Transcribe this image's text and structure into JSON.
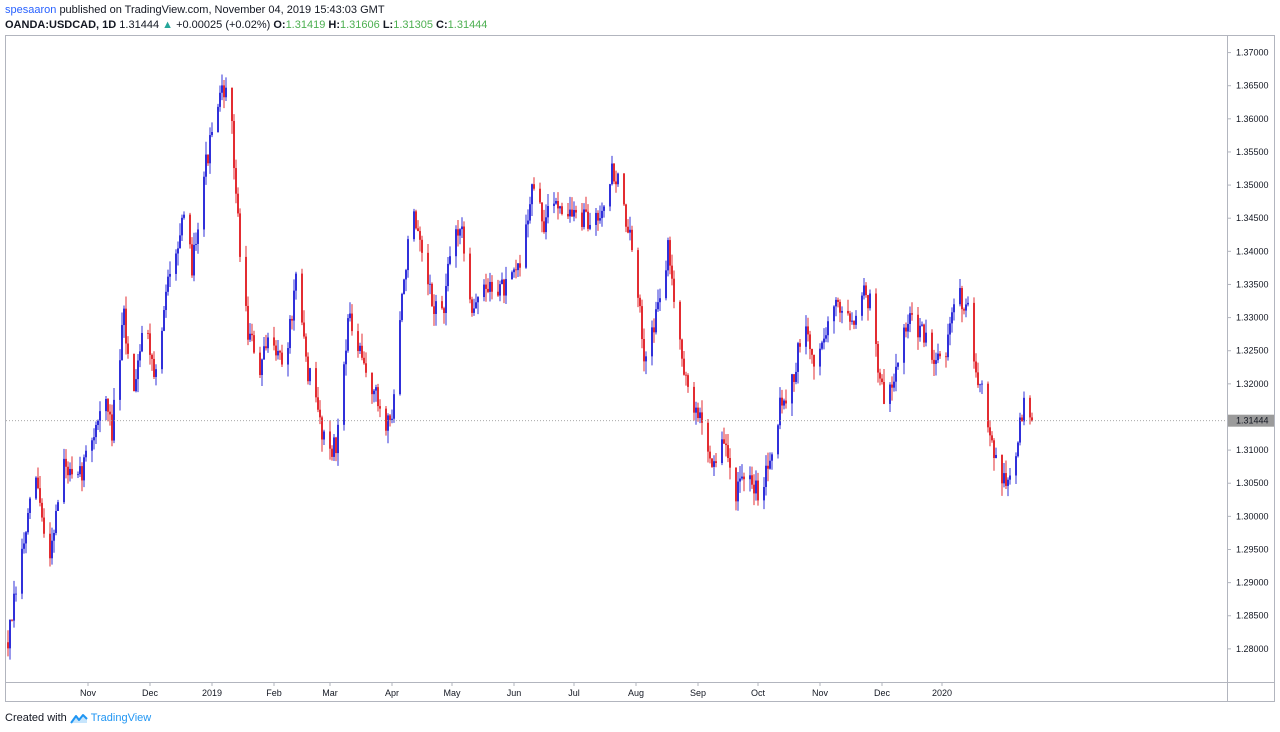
{
  "header": {
    "author": "spesaaron",
    "published_text": "published on TradingView.com, November 04, 2019 15:43:03 GMT",
    "symbol": "OANDA:USDCAD, 1D",
    "last": "1.31444",
    "change_arrow": "▲",
    "change": "+0.00025 (+0.02%)",
    "o_label": "O:",
    "o_value": "1.31419",
    "h_label": "H:",
    "h_value": "1.31606",
    "l_label": "L:",
    "l_value": "1.31305",
    "c_label": "C:",
    "c_value": "1.31444"
  },
  "footer": {
    "created_with": "Created with",
    "brand": "TradingView",
    "logo_icon": "tradingview-logo-icon"
  },
  "colors": {
    "up": "#1a1ad6",
    "down": "#e0151b",
    "price_line": "#9b9b9b",
    "axis_border": "#b2b5be"
  },
  "chart_data": {
    "type": "candlestick",
    "symbol": "OANDA:USDCAD",
    "interval": "1D",
    "ylim": [
      1.275,
      1.3725
    ],
    "y_ticks": [
      "1.37000",
      "1.36500",
      "1.36000",
      "1.35500",
      "1.35000",
      "1.34500",
      "1.34000",
      "1.33500",
      "1.33000",
      "1.32500",
      "1.32000",
      "1.31444",
      "1.31000",
      "1.30500",
      "1.30000",
      "1.29500",
      "1.29000",
      "1.28500",
      "1.28000"
    ],
    "last_price": 1.31444,
    "last_price_label": "1.31444",
    "x_ticks": [
      "Nov",
      "Dec",
      "2019",
      "Feb",
      "Mar",
      "Apr",
      "May",
      "Jun",
      "Jul",
      "Aug",
      "Sep",
      "Oct",
      "Nov",
      "Dec",
      "2020"
    ],
    "grid": false,
    "anchors": [
      [
        0,
        1.281
      ],
      [
        8,
        1.296
      ],
      [
        14,
        1.306
      ],
      [
        20,
        1.293
      ],
      [
        28,
        1.308
      ],
      [
        34,
        1.304
      ],
      [
        42,
        1.312
      ],
      [
        48,
        1.318
      ],
      [
        52,
        1.313
      ],
      [
        58,
        1.33
      ],
      [
        62,
        1.318
      ],
      [
        68,
        1.33
      ],
      [
        74,
        1.321
      ],
      [
        82,
        1.34
      ],
      [
        88,
        1.344
      ],
      [
        92,
        1.338
      ],
      [
        98,
        1.352
      ],
      [
        104,
        1.36
      ],
      [
        108,
        1.365
      ],
      [
        112,
        1.358
      ],
      [
        116,
        1.34
      ],
      [
        120,
        1.328
      ],
      [
        126,
        1.322
      ],
      [
        132,
        1.328
      ],
      [
        138,
        1.322
      ],
      [
        144,
        1.335
      ],
      [
        150,
        1.322
      ],
      [
        158,
        1.312
      ],
      [
        164,
        1.31
      ],
      [
        170,
        1.33
      ],
      [
        176,
        1.324
      ],
      [
        184,
        1.318
      ],
      [
        188,
        1.314
      ],
      [
        192,
        1.315
      ],
      [
        198,
        1.336
      ],
      [
        202,
        1.346
      ],
      [
        206,
        1.34
      ],
      [
        212,
        1.332
      ],
      [
        218,
        1.331
      ],
      [
        222,
        1.342
      ],
      [
        226,
        1.344
      ],
      [
        232,
        1.332
      ],
      [
        238,
        1.334
      ],
      [
        244,
        1.335
      ],
      [
        250,
        1.334
      ],
      [
        256,
        1.338
      ],
      [
        262,
        1.35
      ],
      [
        268,
        1.344
      ],
      [
        274,
        1.348
      ],
      [
        280,
        1.346
      ],
      [
        286,
        1.345
      ],
      [
        292,
        1.344
      ],
      [
        298,
        1.348
      ],
      [
        302,
        1.352
      ],
      [
        306,
        1.35
      ],
      [
        312,
        1.34
      ],
      [
        318,
        1.325
      ],
      [
        324,
        1.33
      ],
      [
        330,
        1.34
      ],
      [
        334,
        1.332
      ],
      [
        340,
        1.318
      ],
      [
        346,
        1.315
      ],
      [
        352,
        1.308
      ],
      [
        358,
        1.311
      ],
      [
        364,
        1.304
      ],
      [
        370,
        1.305
      ],
      [
        376,
        1.304
      ],
      [
        380,
        1.308
      ],
      [
        386,
        1.317
      ],
      [
        392,
        1.32
      ],
      [
        398,
        1.329
      ],
      [
        404,
        1.322
      ],
      [
        410,
        1.33
      ],
      [
        416,
        1.332
      ],
      [
        422,
        1.33
      ],
      [
        428,
        1.334
      ],
      [
        432,
        1.332
      ],
      [
        436,
        1.32
      ],
      [
        440,
        1.317
      ],
      [
        446,
        1.326
      ],
      [
        452,
        1.33
      ],
      [
        458,
        1.327
      ],
      [
        464,
        1.324
      ],
      [
        470,
        1.326
      ],
      [
        474,
        1.334
      ],
      [
        480,
        1.332
      ],
      [
        484,
        1.32
      ],
      [
        488,
        1.318
      ],
      [
        492,
        1.312
      ],
      [
        496,
        1.306
      ],
      [
        500,
        1.305
      ],
      [
        504,
        1.31
      ],
      [
        508,
        1.317
      ],
      [
        512,
        1.3144
      ]
    ],
    "volatility": 0.0022,
    "random_seed": 7
  }
}
